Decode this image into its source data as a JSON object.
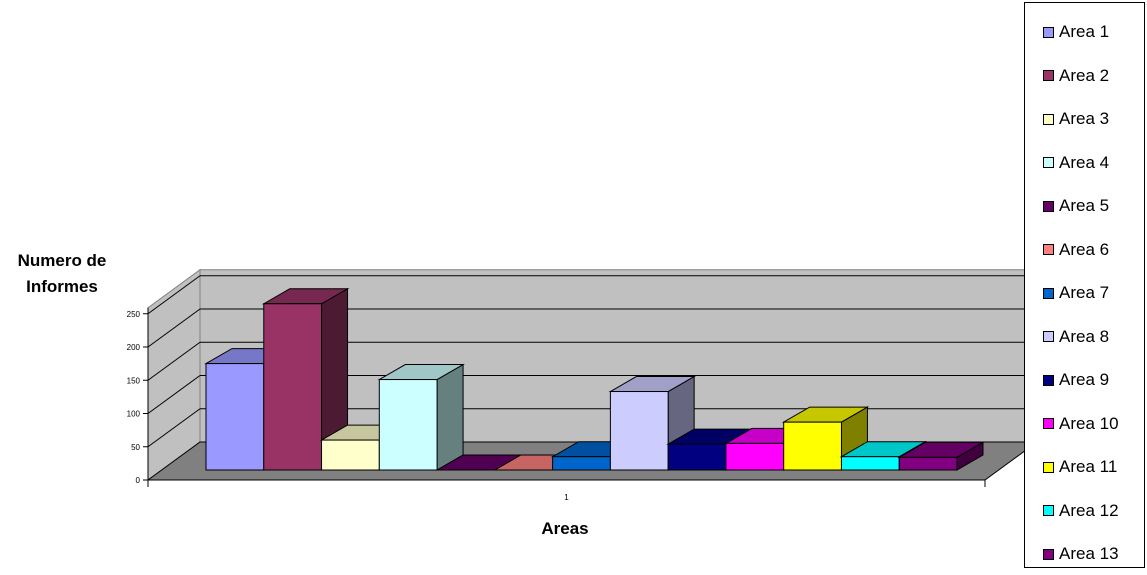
{
  "chart_data": {
    "type": "bar",
    "categories": [
      "1"
    ],
    "series": [
      {
        "name": "Area 1",
        "values": [
          160
        ],
        "color": "#9999FF"
      },
      {
        "name": "Area 2",
        "values": [
          250
        ],
        "color": "#993366"
      },
      {
        "name": "Area 3",
        "values": [
          45
        ],
        "color": "#FFFFCC"
      },
      {
        "name": "Area 4",
        "values": [
          136
        ],
        "color": "#CCFFFF"
      },
      {
        "name": "Area 5",
        "values": [
          0
        ],
        "color": "#660066"
      },
      {
        "name": "Area 6",
        "values": [
          0
        ],
        "color": "#FF8080"
      },
      {
        "name": "Area 7",
        "values": [
          20
        ],
        "color": "#0066CC"
      },
      {
        "name": "Area 8",
        "values": [
          118
        ],
        "color": "#CCCCFF"
      },
      {
        "name": "Area 9",
        "values": [
          39
        ],
        "color": "#000080"
      },
      {
        "name": "Area 10",
        "values": [
          40
        ],
        "color": "#FF00FF"
      },
      {
        "name": "Area 11",
        "values": [
          72
        ],
        "color": "#FFFF00"
      },
      {
        "name": "Area 12",
        "values": [
          20
        ],
        "color": "#00FFFF"
      },
      {
        "name": "Area 13",
        "values": [
          19
        ],
        "color": "#800080"
      }
    ],
    "xlabel": "Areas",
    "ylabel": "Numero de Informes",
    "yticks": [
      "0",
      "50",
      "100",
      "150",
      "200",
      "250"
    ],
    "ylim": [
      0,
      250
    ],
    "grid": true,
    "legend": "right",
    "style": "3d"
  }
}
